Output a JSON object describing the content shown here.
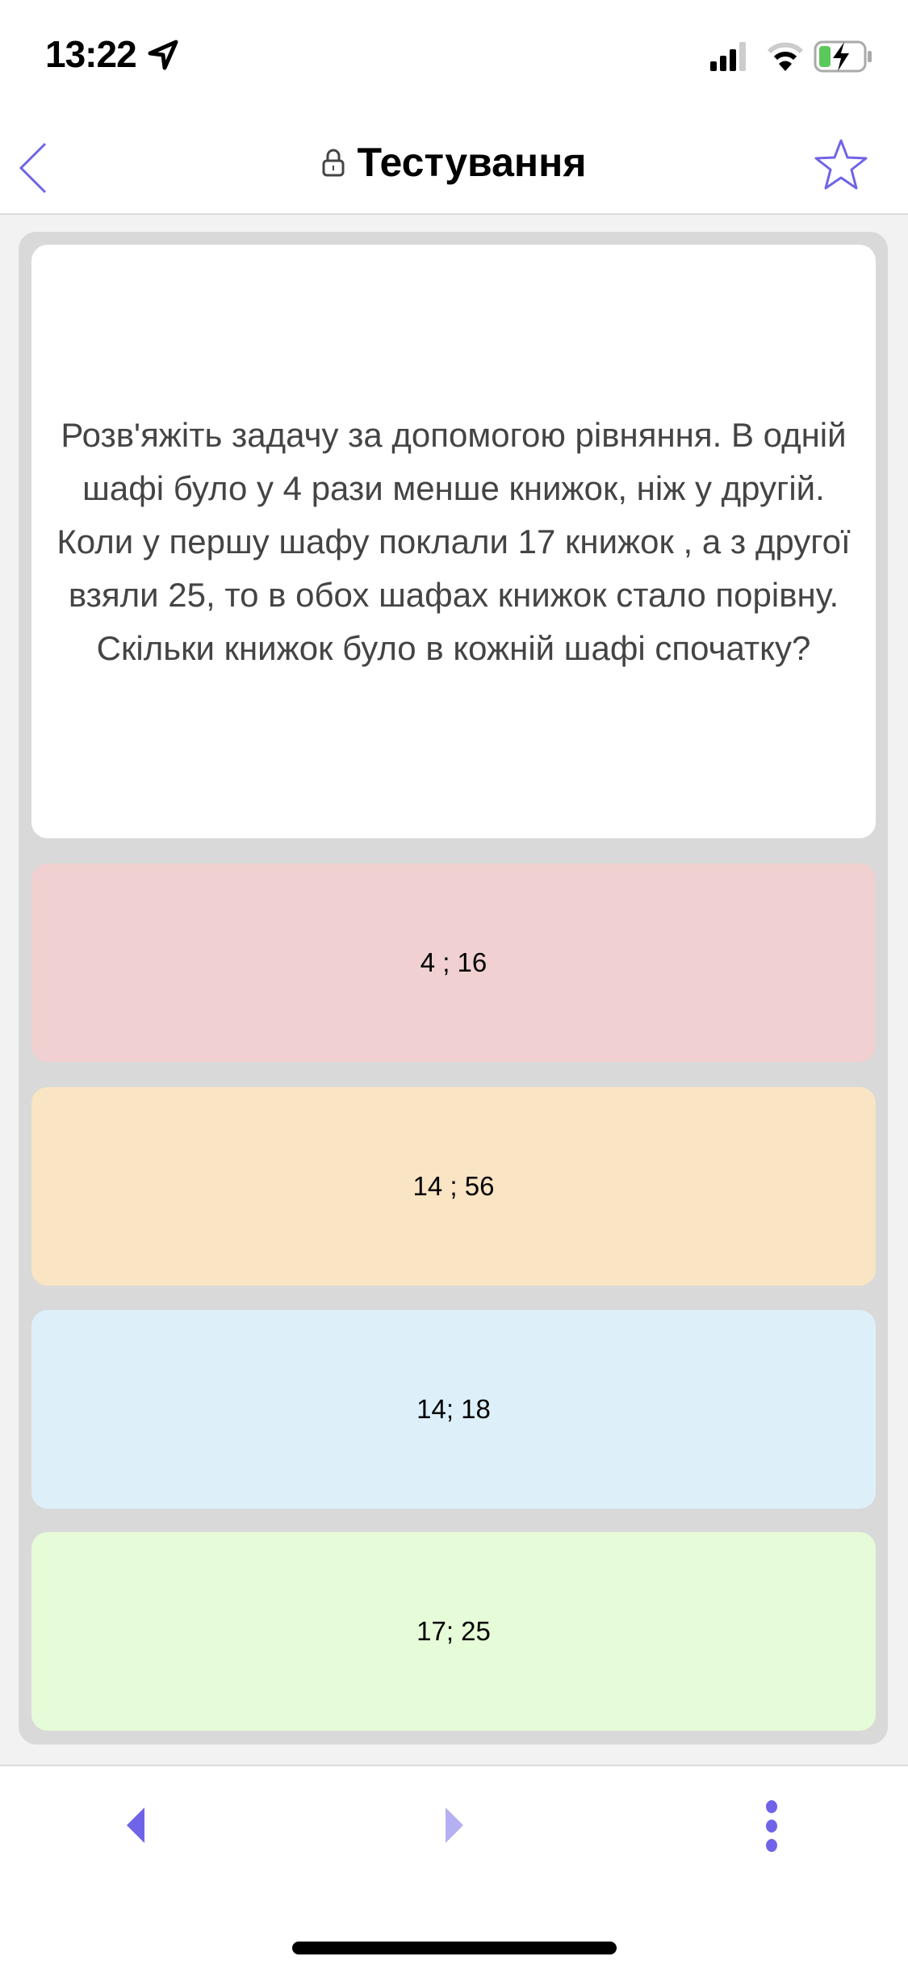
{
  "status_bar": {
    "time": "13:22"
  },
  "header": {
    "title": "Тестування"
  },
  "question": {
    "text": "Розв'яжіть задачу за допомогою рівняння. В одній шафі було у 4 рази менше книжок, ніж у другій. Коли у першу шафу поклали 17 книжок , а з другої взяли 25, то в обох шафах книжок стало порівну. Скільки книжок було в кожній шафі спочатку?"
  },
  "answers": [
    {
      "label": "4 ; 16",
      "color": "#f0d0d0"
    },
    {
      "label": "14 ; 56",
      "color": "#f9e4c3"
    },
    {
      "label": "14; 18",
      "color": "#ddf0fa"
    },
    {
      "label": "17; 25",
      "color": "#e6fbd7"
    }
  ],
  "colors": {
    "accent": "#6f64e7",
    "accent_disabled": "#b5b0f1"
  },
  "icons": [
    "location-arrow-icon",
    "signal-icon",
    "wifi-icon",
    "battery-charging-icon",
    "back-chevron-icon",
    "lock-icon",
    "star-icon",
    "previous-icon",
    "next-icon",
    "more-vertical-icon"
  ]
}
